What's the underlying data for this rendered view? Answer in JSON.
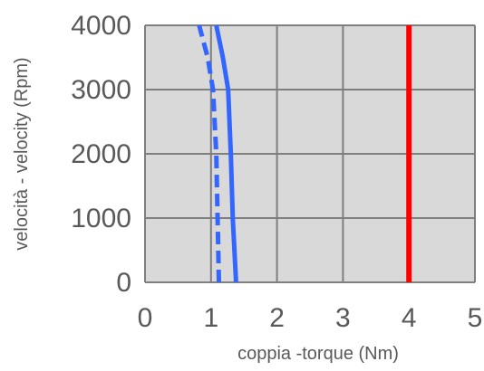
{
  "chart_data": {
    "type": "line",
    "title": "",
    "xlabel": "coppia -torque (Nm)",
    "ylabel": "velocità - velocity (Rpm)",
    "xlim": [
      0,
      5
    ],
    "ylim": [
      0,
      4000
    ],
    "x_ticks": [
      "0",
      "1",
      "2",
      "3",
      "4",
      "5"
    ],
    "y_ticks": [
      "0",
      "1000",
      "2000",
      "3000",
      "4000"
    ],
    "grid": true,
    "legend": "none",
    "colors": {
      "plot_background": "#d9d9d9",
      "grid": "#7f7f7f",
      "blue": "#3366ff",
      "red": "#ff0000",
      "text": "#595959"
    },
    "series": [
      {
        "style": "solid",
        "color": "#3366ff",
        "points": [
          {
            "x": 1.38,
            "y": 0
          },
          {
            "x": 1.33,
            "y": 1000
          },
          {
            "x": 1.3,
            "y": 2000
          },
          {
            "x": 1.26,
            "y": 3000
          },
          {
            "x": 1.18,
            "y": 3500
          },
          {
            "x": 1.08,
            "y": 4000
          }
        ]
      },
      {
        "style": "dashed",
        "color": "#3366ff",
        "points": [
          {
            "x": 1.12,
            "y": 0
          },
          {
            "x": 1.1,
            "y": 1000
          },
          {
            "x": 1.08,
            "y": 2000
          },
          {
            "x": 1.03,
            "y": 3000
          },
          {
            "x": 0.95,
            "y": 3500
          },
          {
            "x": 0.82,
            "y": 4000
          }
        ]
      },
      {
        "style": "solid",
        "color": "#ff0000",
        "points": [
          {
            "x": 4.0,
            "y": 0
          },
          {
            "x": 4.0,
            "y": 4000
          }
        ]
      }
    ]
  }
}
